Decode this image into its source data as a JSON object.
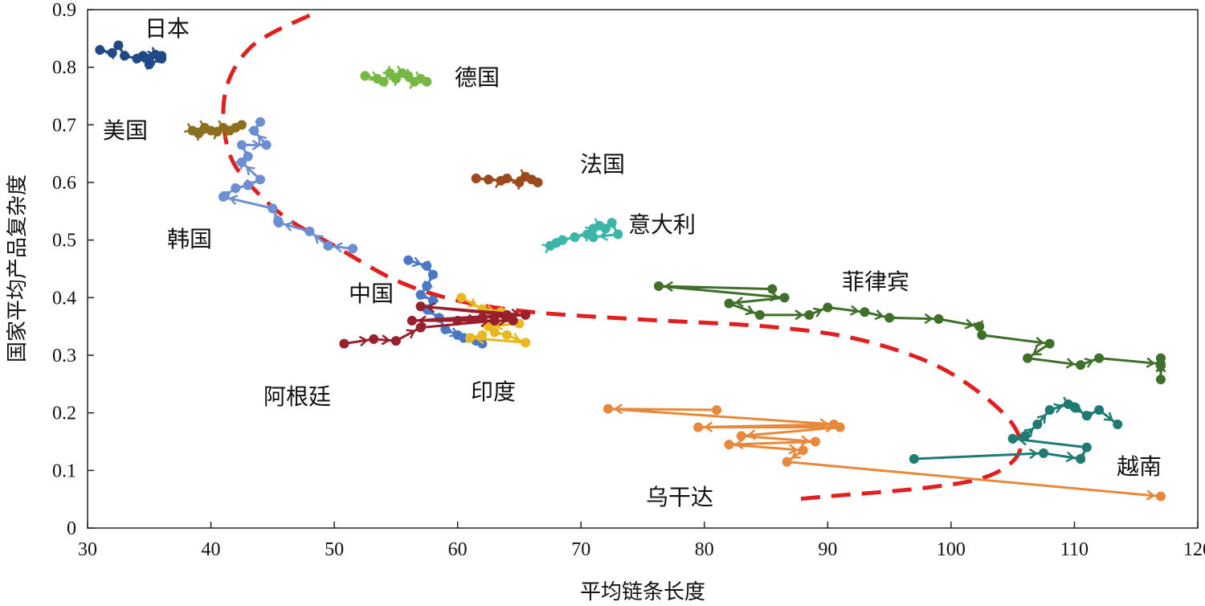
{
  "chart_data": {
    "type": "line",
    "xlabel": "平均链条长度",
    "ylabel": "国家平均产品复杂度",
    "xlim": [
      30,
      120
    ],
    "ylim": [
      0,
      0.9
    ],
    "xticks": [
      "30",
      "40",
      "50",
      "60",
      "70",
      "80",
      "90",
      "100",
      "110",
      "120"
    ],
    "yticks": [
      "0",
      "0.1",
      "0.2",
      "0.3",
      "0.4",
      "0.5",
      "0.6",
      "0.7",
      "0.8",
      "0.9"
    ],
    "grid": false,
    "legend": "none",
    "series": [
      {
        "name": "日本",
        "color": "#1f4a87",
        "points": [
          [
            31,
            0.83
          ],
          [
            32,
            0.825
          ],
          [
            32.5,
            0.838
          ],
          [
            33,
            0.82
          ],
          [
            34,
            0.815
          ],
          [
            35,
            0.81
          ],
          [
            35.5,
            0.822
          ],
          [
            36,
            0.815
          ],
          [
            35,
            0.805
          ],
          [
            34.5,
            0.82
          ],
          [
            36,
            0.82
          ]
        ]
      },
      {
        "name": "美国",
        "color": "#8c6f1f",
        "points": [
          [
            38.5,
            0.69
          ],
          [
            39,
            0.685
          ],
          [
            39.5,
            0.695
          ],
          [
            40,
            0.69
          ],
          [
            40.5,
            0.688
          ],
          [
            41,
            0.695
          ],
          [
            41.5,
            0.69
          ],
          [
            42,
            0.695
          ],
          [
            42.5,
            0.7
          ]
        ]
      },
      {
        "name": "韩国",
        "color": "#6b8fd0",
        "points": [
          [
            51.5,
            0.485
          ],
          [
            49.5,
            0.49
          ],
          [
            48,
            0.515
          ],
          [
            45.5,
            0.53
          ],
          [
            45,
            0.555
          ],
          [
            41,
            0.575
          ],
          [
            42,
            0.59
          ],
          [
            43,
            0.595
          ],
          [
            44,
            0.605
          ],
          [
            42.5,
            0.635
          ],
          [
            43,
            0.645
          ],
          [
            42.5,
            0.665
          ],
          [
            44.5,
            0.665
          ],
          [
            43.5,
            0.69
          ],
          [
            44,
            0.705
          ]
        ]
      },
      {
        "name": "德国",
        "color": "#76b843",
        "points": [
          [
            52.5,
            0.785
          ],
          [
            53.5,
            0.78
          ],
          [
            54,
            0.775
          ],
          [
            54.5,
            0.79
          ],
          [
            55,
            0.78
          ],
          [
            55.5,
            0.79
          ],
          [
            56,
            0.785
          ],
          [
            56.5,
            0.775
          ],
          [
            57,
            0.78
          ],
          [
            57.5,
            0.775
          ]
        ]
      },
      {
        "name": "法国",
        "color": "#9b4a1c",
        "points": [
          [
            61.5,
            0.607
          ],
          [
            62.5,
            0.605
          ],
          [
            63.5,
            0.603
          ],
          [
            64,
            0.607
          ],
          [
            65,
            0.6
          ],
          [
            65.5,
            0.61
          ],
          [
            66,
            0.605
          ],
          [
            66.5,
            0.6
          ]
        ]
      },
      {
        "name": "意大利",
        "color": "#3bb5a7",
        "points": [
          [
            67.5,
            0.49
          ],
          [
            68,
            0.495
          ],
          [
            68.5,
            0.5
          ],
          [
            69.5,
            0.505
          ],
          [
            70.5,
            0.51
          ],
          [
            71,
            0.52
          ],
          [
            71.5,
            0.525
          ],
          [
            72,
            0.52
          ],
          [
            72.5,
            0.53
          ],
          [
            73,
            0.51
          ],
          [
            71,
            0.505
          ]
        ]
      },
      {
        "name": "中国",
        "color": "#4a78c4",
        "points": [
          [
            56,
            0.465
          ],
          [
            57.5,
            0.455
          ],
          [
            58,
            0.44
          ],
          [
            57.5,
            0.42
          ],
          [
            57,
            0.405
          ],
          [
            58,
            0.395
          ],
          [
            57.5,
            0.38
          ],
          [
            58.5,
            0.365
          ],
          [
            59,
            0.345
          ],
          [
            60,
            0.335
          ],
          [
            60.5,
            0.33
          ],
          [
            61.5,
            0.325
          ],
          [
            62,
            0.32
          ]
        ]
      },
      {
        "name": "印度",
        "color": "#e8b820",
        "points": [
          [
            60.3,
            0.4
          ],
          [
            62,
            0.38
          ],
          [
            63.5,
            0.375
          ],
          [
            64.5,
            0.36
          ],
          [
            65,
            0.355
          ],
          [
            62.5,
            0.35
          ],
          [
            63,
            0.34
          ],
          [
            64,
            0.335
          ],
          [
            65.5,
            0.322
          ],
          [
            61,
            0.33
          ],
          [
            62,
            0.335
          ]
        ]
      },
      {
        "name": "阿根廷",
        "color": "#981f2b",
        "points": [
          [
            50.8,
            0.32
          ],
          [
            53.2,
            0.328
          ],
          [
            55,
            0.325
          ],
          [
            57,
            0.348
          ],
          [
            63,
            0.36
          ],
          [
            56.3,
            0.36
          ],
          [
            64,
            0.37
          ],
          [
            57,
            0.385
          ],
          [
            65.5,
            0.37
          ],
          [
            62,
            0.365
          ],
          [
            60,
            0.36
          ],
          [
            64.5,
            0.36
          ]
        ]
      },
      {
        "name": "菲律宾",
        "color": "#3e7029",
        "points": [
          [
            85.5,
            0.415
          ],
          [
            76.3,
            0.42
          ],
          [
            86.5,
            0.4
          ],
          [
            82,
            0.39
          ],
          [
            84.5,
            0.37
          ],
          [
            88.5,
            0.37
          ],
          [
            90,
            0.383
          ],
          [
            93,
            0.375
          ],
          [
            95,
            0.365
          ],
          [
            99,
            0.363
          ],
          [
            102.3,
            0.35
          ],
          [
            102.5,
            0.335
          ],
          [
            108,
            0.32
          ],
          [
            106.2,
            0.295
          ],
          [
            110.5,
            0.283
          ],
          [
            112,
            0.295
          ],
          [
            117,
            0.285
          ],
          [
            117,
            0.295
          ],
          [
            117,
            0.258
          ]
        ]
      },
      {
        "name": "乌干达",
        "color": "#e8883a",
        "points": [
          [
            81,
            0.205
          ],
          [
            72.2,
            0.207
          ],
          [
            90.5,
            0.18
          ],
          [
            79.5,
            0.175
          ],
          [
            91,
            0.175
          ],
          [
            83,
            0.16
          ],
          [
            89,
            0.15
          ],
          [
            82,
            0.145
          ],
          [
            88,
            0.135
          ],
          [
            86.7,
            0.115
          ],
          [
            117,
            0.055
          ]
        ]
      },
      {
        "name": "越南",
        "color": "#1e7a72",
        "points": [
          [
            97,
            0.12
          ],
          [
            107.5,
            0.13
          ],
          [
            110.5,
            0.12
          ],
          [
            111,
            0.14
          ],
          [
            105,
            0.155
          ],
          [
            106,
            0.16
          ],
          [
            107,
            0.18
          ],
          [
            108,
            0.205
          ],
          [
            109.5,
            0.215
          ],
          [
            110,
            0.21
          ],
          [
            111,
            0.195
          ],
          [
            112,
            0.205
          ],
          [
            113.5,
            0.18
          ]
        ]
      }
    ],
    "trend_curve": {
      "color": "#e02020",
      "style": "dashed",
      "points": [
        [
          48,
          0.89
        ],
        [
          45,
          0.86
        ],
        [
          43,
          0.83
        ],
        [
          41.5,
          0.78
        ],
        [
          41,
          0.72
        ],
        [
          41.5,
          0.65
        ],
        [
          43,
          0.6
        ],
        [
          46,
          0.54
        ],
        [
          50,
          0.49
        ],
        [
          55,
          0.43
        ],
        [
          60,
          0.395
        ],
        [
          66,
          0.375
        ],
        [
          75,
          0.362
        ],
        [
          85,
          0.35
        ],
        [
          92,
          0.33
        ],
        [
          98,
          0.29
        ],
        [
          102,
          0.24
        ],
        [
          105,
          0.18
        ],
        [
          105.5,
          0.13
        ],
        [
          103,
          0.09
        ],
        [
          98,
          0.07
        ],
        [
          90,
          0.055
        ],
        [
          87.5,
          0.05
        ]
      ]
    },
    "annotations": [
      "日本",
      "美国",
      "韩国",
      "德国",
      "法国",
      "意大利",
      "中国",
      "印度",
      "阿根廷",
      "菲律宾",
      "乌干达",
      "越南"
    ]
  }
}
